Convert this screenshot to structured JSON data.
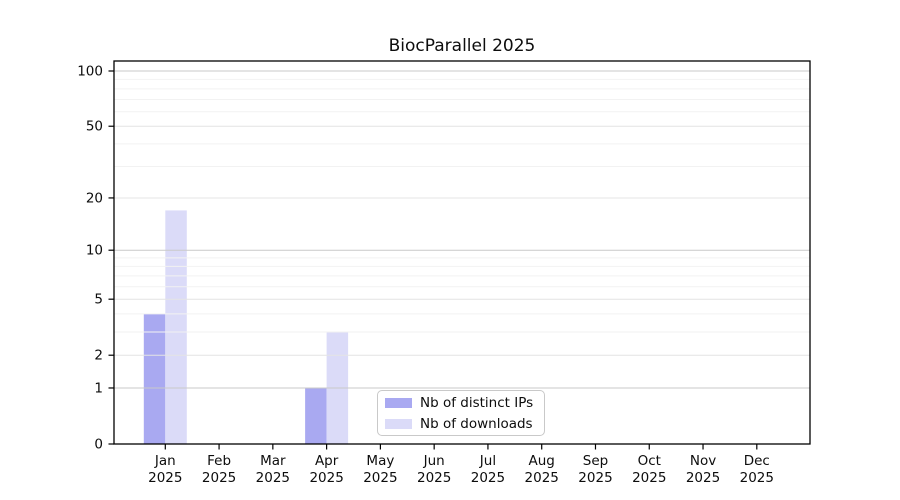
{
  "title": "BiocParallel 2025",
  "chart_data": {
    "type": "bar",
    "title": "BiocParallel 2025",
    "categories": [
      "Jan",
      "Feb",
      "Mar",
      "Apr",
      "May",
      "Jun",
      "Jul",
      "Aug",
      "Sep",
      "Oct",
      "Nov",
      "Dec"
    ],
    "x_tick_year": "2025",
    "series": [
      {
        "name": "Nb of distinct IPs",
        "color": "#a9a9f1",
        "values": [
          4,
          0,
          0,
          1,
          0,
          0,
          0,
          0,
          0,
          0,
          0,
          0
        ]
      },
      {
        "name": "Nb of downloads",
        "color": "#dbdbf8",
        "values": [
          17,
          0,
          0,
          3,
          0,
          0,
          0,
          0,
          0,
          0,
          0,
          0
        ]
      }
    ],
    "yscale": "log10(value+1)",
    "ylim": [
      0,
      100
    ],
    "yticks": [
      0,
      1,
      2,
      5,
      10,
      20,
      50,
      100
    ],
    "grid": true,
    "grid_major_values": [
      1,
      10,
      100
    ],
    "grid_mid_values": [
      2,
      5,
      20,
      50
    ],
    "grid_minor_values": [
      3,
      4,
      6,
      7,
      8,
      9,
      30,
      40,
      60,
      70,
      80,
      90
    ],
    "legend_position": "lower-center-inside",
    "xlabel": "",
    "ylabel": ""
  },
  "colors": {
    "grid_major": "#c9c9c9",
    "grid_mid": "#e4e4e4",
    "grid_minor": "#f2f2f2",
    "axis": "#000000",
    "text": "#0d0d0d"
  }
}
